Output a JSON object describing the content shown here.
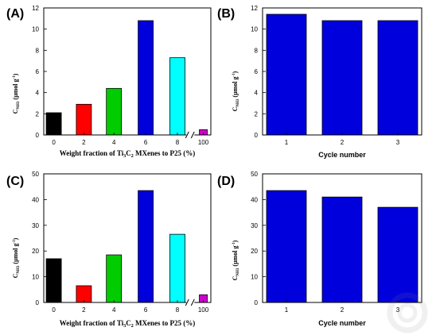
{
  "chart_data": [
    {
      "panel": "(A)",
      "type": "bar",
      "categories": [
        "0",
        "2",
        "4",
        "6",
        "8",
        "100"
      ],
      "values": [
        2.1,
        2.9,
        4.4,
        10.8,
        7.3,
        0.5
      ],
      "colors": [
        "#000000",
        "#ff0000",
        "#00cc00",
        "#0000dd",
        "#00ffff",
        "#cc00cc"
      ],
      "xlabel": "Weight fraction of Ti3C2 MXenes to P25 (%)",
      "ylabel": "C_NH3 (μmol g^-1)",
      "ylim": [
        0,
        12
      ],
      "yticks": [
        0,
        2,
        4,
        6,
        8,
        10,
        12
      ],
      "axis_break_before_last": true
    },
    {
      "panel": "(B)",
      "type": "bar",
      "categories": [
        "1",
        "2",
        "3"
      ],
      "values": [
        11.4,
        10.8,
        10.8
      ],
      "colors": [
        "#0000dd",
        "#0000dd",
        "#0000dd"
      ],
      "xlabel": "Cycle number",
      "ylabel": "C_NH3 (μmol g^-1)",
      "ylim": [
        0,
        12
      ],
      "yticks": [
        0,
        2,
        4,
        6,
        8,
        10,
        12
      ]
    },
    {
      "panel": "(C)",
      "type": "bar",
      "categories": [
        "0",
        "2",
        "4",
        "6",
        "8",
        "100"
      ],
      "values": [
        17,
        6.5,
        18.5,
        43.5,
        26.5,
        3
      ],
      "colors": [
        "#000000",
        "#ff0000",
        "#00cc00",
        "#0000dd",
        "#00ffff",
        "#cc00cc"
      ],
      "xlabel": "Weight fraction of Ti3C2 MXenes to P25 (%)",
      "ylabel": "C_NH3 (μmol g^-1)",
      "ylim": [
        0,
        50
      ],
      "yticks": [
        0,
        10,
        20,
        30,
        40,
        50
      ],
      "axis_break_before_last": true
    },
    {
      "panel": "(D)",
      "type": "bar",
      "categories": [
        "1",
        "2",
        "3"
      ],
      "values": [
        43.5,
        41,
        37
      ],
      "colors": [
        "#0000dd",
        "#0000dd",
        "#0000dd"
      ],
      "xlabel": "Cycle number",
      "ylabel": "C_NH3 (μmol g^-1)",
      "ylim": [
        0,
        50
      ],
      "yticks": [
        0,
        10,
        20,
        30,
        40,
        50
      ]
    }
  ]
}
